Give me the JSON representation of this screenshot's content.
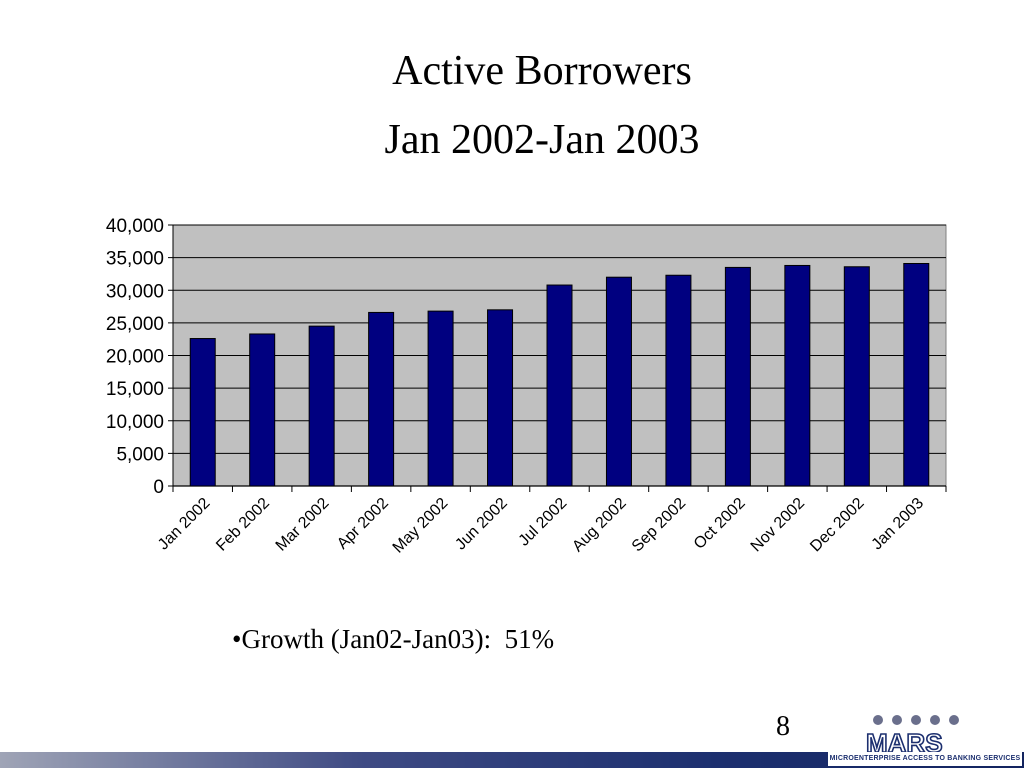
{
  "slide": {
    "title_line1": "Active Borrowers",
    "title_line2": "Jan 2002-Jan 2003",
    "bullet": "•Growth (Jan02-Jan03):  51%",
    "page_number": "8",
    "logo_wordmark": "MARS",
    "logo_tagline": "MICROENTERPRISE ACCESS TO BANKING SERVICES"
  },
  "colors": {
    "bar": "#000080",
    "plot_background": "#c0c0c0",
    "gridline": "#000000",
    "footer_bar": "#1c2f6f"
  },
  "chart_data": {
    "type": "bar",
    "title": "Active Borrowers Jan 2002-Jan 2003",
    "xlabel": "",
    "ylabel": "",
    "categories": [
      "Jan 2002",
      "Feb 2002",
      "Mar 2002",
      "Apr 2002",
      "May 2002",
      "Jun 2002",
      "Jul 2002",
      "Aug 2002",
      "Sep 2002",
      "Oct 2002",
      "Nov 2002",
      "Dec 2002",
      "Jan 2003"
    ],
    "values": [
      22600,
      23300,
      24500,
      26600,
      26800,
      27000,
      30800,
      32000,
      32300,
      33500,
      33800,
      33600,
      34100
    ],
    "ylim": [
      0,
      40000
    ],
    "yticks": [
      0,
      5000,
      10000,
      15000,
      20000,
      25000,
      30000,
      35000,
      40000
    ],
    "ytick_labels": [
      "0",
      "5,000",
      "10,000",
      "15,000",
      "20,000",
      "25,000",
      "30,000",
      "35,000",
      "40,000"
    ],
    "grid": true,
    "legend": "none"
  }
}
